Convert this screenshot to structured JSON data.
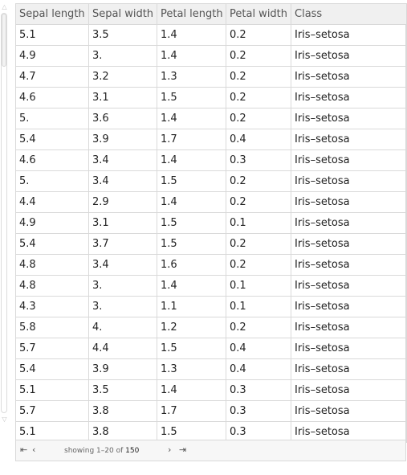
{
  "columns": [
    "Sepal length",
    "Sepal width",
    "Petal length",
    "Petal width",
    "Class"
  ],
  "rows": [
    [
      "5.1",
      "3.5",
      "1.4",
      "0.2",
      "Iris–setosa"
    ],
    [
      "4.9",
      "3.",
      "1.4",
      "0.2",
      "Iris–setosa"
    ],
    [
      "4.7",
      "3.2",
      "1.3",
      "0.2",
      "Iris–setosa"
    ],
    [
      "4.6",
      "3.1",
      "1.5",
      "0.2",
      "Iris–setosa"
    ],
    [
      "5.",
      "3.6",
      "1.4",
      "0.2",
      "Iris–setosa"
    ],
    [
      "5.4",
      "3.9",
      "1.7",
      "0.4",
      "Iris–setosa"
    ],
    [
      "4.6",
      "3.4",
      "1.4",
      "0.3",
      "Iris–setosa"
    ],
    [
      "5.",
      "3.4",
      "1.5",
      "0.2",
      "Iris–setosa"
    ],
    [
      "4.4",
      "2.9",
      "1.4",
      "0.2",
      "Iris–setosa"
    ],
    [
      "4.9",
      "3.1",
      "1.5",
      "0.1",
      "Iris–setosa"
    ],
    [
      "5.4",
      "3.7",
      "1.5",
      "0.2",
      "Iris–setosa"
    ],
    [
      "4.8",
      "3.4",
      "1.6",
      "0.2",
      "Iris–setosa"
    ],
    [
      "4.8",
      "3.",
      "1.4",
      "0.1",
      "Iris–setosa"
    ],
    [
      "4.3",
      "3.",
      "1.1",
      "0.1",
      "Iris–setosa"
    ],
    [
      "5.8",
      "4.",
      "1.2",
      "0.2",
      "Iris–setosa"
    ],
    [
      "5.7",
      "4.4",
      "1.5",
      "0.4",
      "Iris–setosa"
    ],
    [
      "5.4",
      "3.9",
      "1.3",
      "0.4",
      "Iris–setosa"
    ],
    [
      "5.1",
      "3.5",
      "1.4",
      "0.3",
      "Iris–setosa"
    ],
    [
      "5.7",
      "3.8",
      "1.7",
      "0.3",
      "Iris–setosa"
    ],
    [
      "5.1",
      "3.8",
      "1.5",
      "0.3",
      "Iris–setosa"
    ]
  ],
  "pager": {
    "first_icon": "⇤",
    "prev_icon": "‹",
    "next_icon": "›",
    "last_icon": "⇥",
    "showing_text": "showing 1–20",
    "of_text": "of",
    "total": "150"
  },
  "scroll": {
    "up_icon": "△",
    "down_icon": "▽"
  }
}
